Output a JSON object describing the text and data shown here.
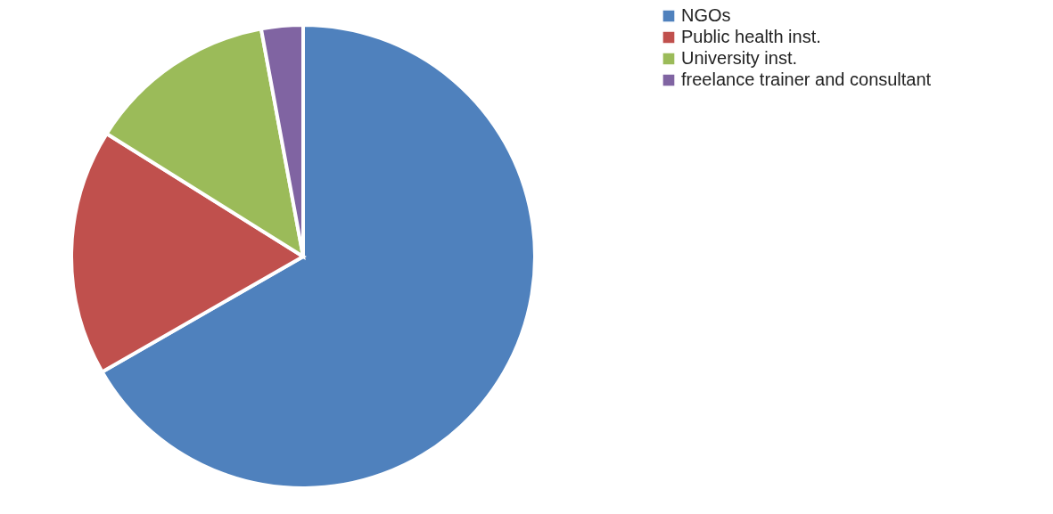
{
  "chart_data": {
    "type": "pie",
    "categories": [
      "NGOs",
      "Public health inst.",
      "University inst.",
      "freelance trainer and consultant"
    ],
    "values": [
      66.7,
      17.2,
      13.2,
      2.9
    ],
    "colors": [
      "#4f81bd",
      "#c0504d",
      "#9bbb59",
      "#8064a2"
    ],
    "legend": "top right"
  }
}
